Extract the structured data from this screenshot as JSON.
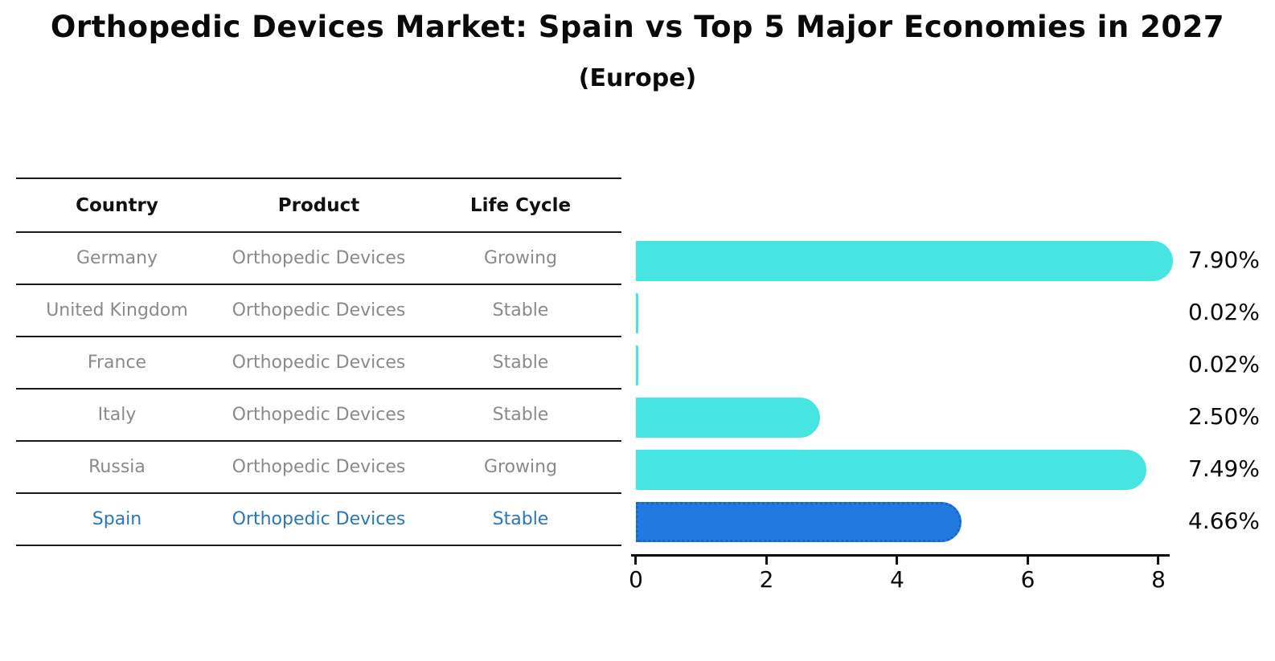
{
  "title": "Orthopedic Devices Market: Spain vs Top 5 Major Economies in 2027",
  "subtitle": "(Europe)",
  "table": {
    "columns": [
      "Country",
      "Product",
      "Life Cycle"
    ],
    "rows": [
      {
        "country": "Germany",
        "product": "Orthopedic Devices",
        "life_cycle": "Growing",
        "highlight": false
      },
      {
        "country": "United Kingdom",
        "product": "Orthopedic Devices",
        "life_cycle": "Stable",
        "highlight": false
      },
      {
        "country": "France",
        "product": "Orthopedic Devices",
        "life_cycle": "Stable",
        "highlight": false
      },
      {
        "country": "Italy",
        "product": "Orthopedic Devices",
        "life_cycle": "Stable",
        "highlight": false
      },
      {
        "country": "Russia",
        "product": "Orthopedic Devices",
        "life_cycle": "Growing",
        "highlight": false
      },
      {
        "country": "Spain",
        "product": "Orthopedic Devices",
        "life_cycle": "Stable",
        "highlight": true
      }
    ]
  },
  "chart_data": {
    "type": "bar",
    "orientation": "horizontal",
    "title": "Orthopedic Devices Market: Spain vs Top 5 Major Economies in 2027 (Europe)",
    "categories": [
      "Germany",
      "United Kingdom",
      "France",
      "Italy",
      "Russia",
      "Spain"
    ],
    "values": [
      7.9,
      0.02,
      0.02,
      2.5,
      7.49,
      4.66
    ],
    "value_labels": [
      "7.90%",
      "0.02%",
      "0.02%",
      "2.50%",
      "7.49%",
      "4.66%"
    ],
    "x_ticks": [
      "0",
      "2",
      "4",
      "6",
      "8"
    ],
    "xlim": [
      0,
      8
    ],
    "xlabel": "",
    "ylabel": "",
    "grid": false,
    "legend": false,
    "highlight_category": "Spain"
  },
  "colors": {
    "bar": "#46e5e2",
    "highlight_bar": "#217ae0",
    "highlight_bar_border": "#1866cc",
    "highlight_text": "#2878b9",
    "table_text": "#8a8a8a",
    "heading_text": "#111111"
  }
}
